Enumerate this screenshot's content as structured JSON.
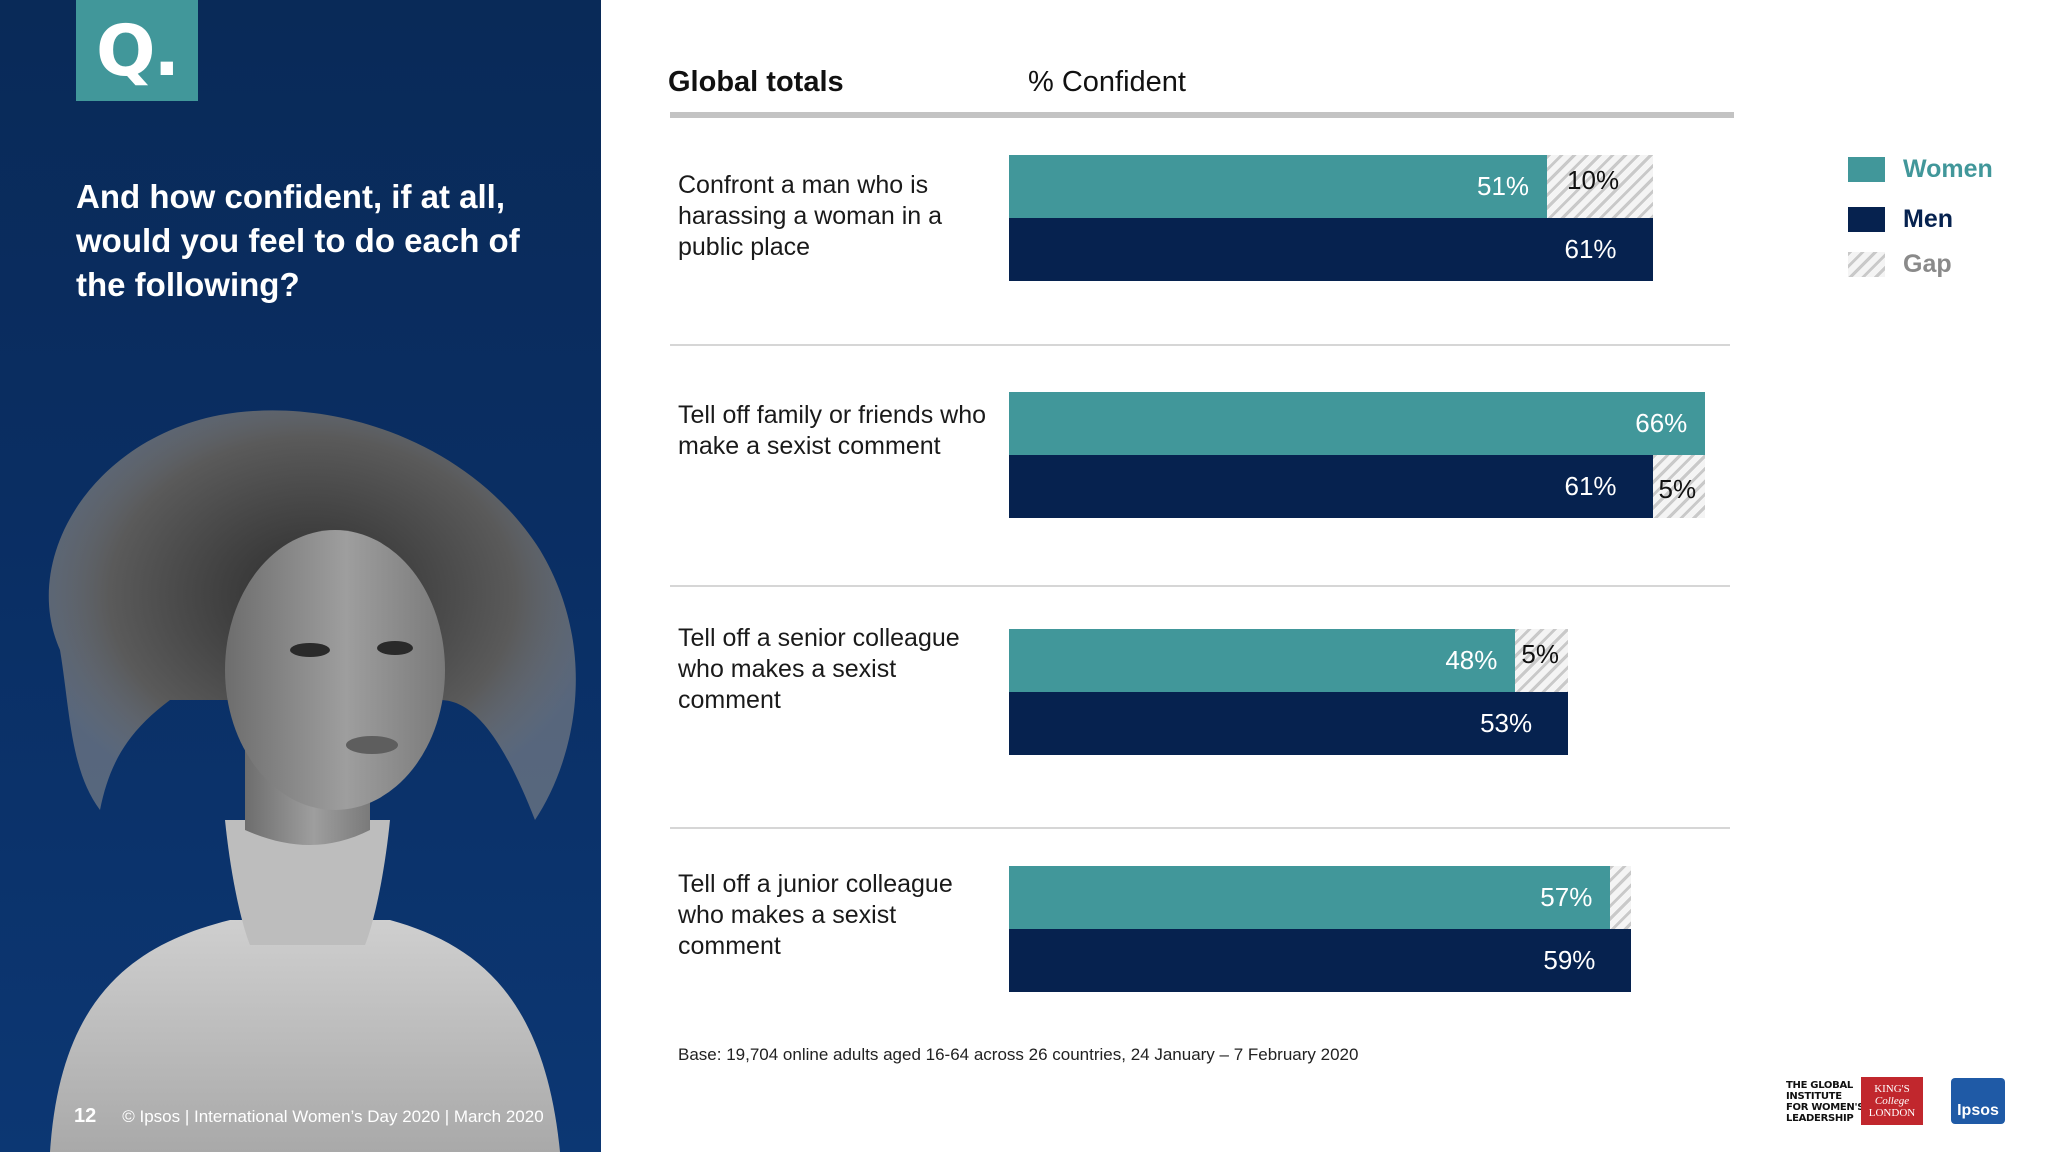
{
  "panel": {
    "badge": "Q.",
    "question": "And how confident, if at all, would you feel to do each of the following?",
    "page_number": "12",
    "footer": "© Ipsos | International Women’s Day 2020 | March 2020"
  },
  "header": {
    "title": "Global totals",
    "subtitle": "% Confident"
  },
  "legend": [
    {
      "label": "Women",
      "color": "#41979a"
    },
    {
      "label": "Men",
      "color": "#06224f"
    },
    {
      "label": "Gap",
      "color": "hatched-grey"
    }
  ],
  "colors": {
    "women": "#41979a",
    "men": "#06224f",
    "legend_text": "#41979a",
    "gap_text": "#888888"
  },
  "base_note": "Base: 19,704 online adults aged 16-64 across 26 countries,  24 January – 7 February 2020",
  "logos": {
    "giwl": [
      "THE GLOBAL",
      "INSTITUTE",
      "FOR WOMEN'S",
      "LEADERSHIP"
    ],
    "kcl": [
      "KING'S",
      "College",
      "LONDON"
    ],
    "ipsos": "Ipsos"
  },
  "chart_data": {
    "type": "bar",
    "orientation": "horizontal",
    "title": "Global totals",
    "xlabel": "% Confident",
    "xlim": [
      0,
      100
    ],
    "categories": [
      "Confront a man who is harassing a woman in a public place",
      "Tell off family or friends who make a sexist comment",
      "Tell off a senior colleague who makes a sexist comment",
      "Tell off a junior colleague who makes a sexist comment"
    ],
    "series": [
      {
        "name": "Women",
        "values": [
          51,
          66,
          48,
          57
        ],
        "labels": [
          "51%",
          "66%",
          "48%",
          "57%"
        ]
      },
      {
        "name": "Men",
        "values": [
          61,
          61,
          53,
          59
        ],
        "labels": [
          "61%",
          "61%",
          "53%",
          "59%"
        ]
      }
    ],
    "gap": {
      "name": "Gap",
      "values": [
        10,
        5,
        5,
        2
      ],
      "labels": [
        "10%",
        "5%",
        "5%",
        ""
      ],
      "applies_to": [
        "Women",
        "Men",
        "Women",
        "Women"
      ]
    },
    "grid": false,
    "legend_position": "right"
  }
}
